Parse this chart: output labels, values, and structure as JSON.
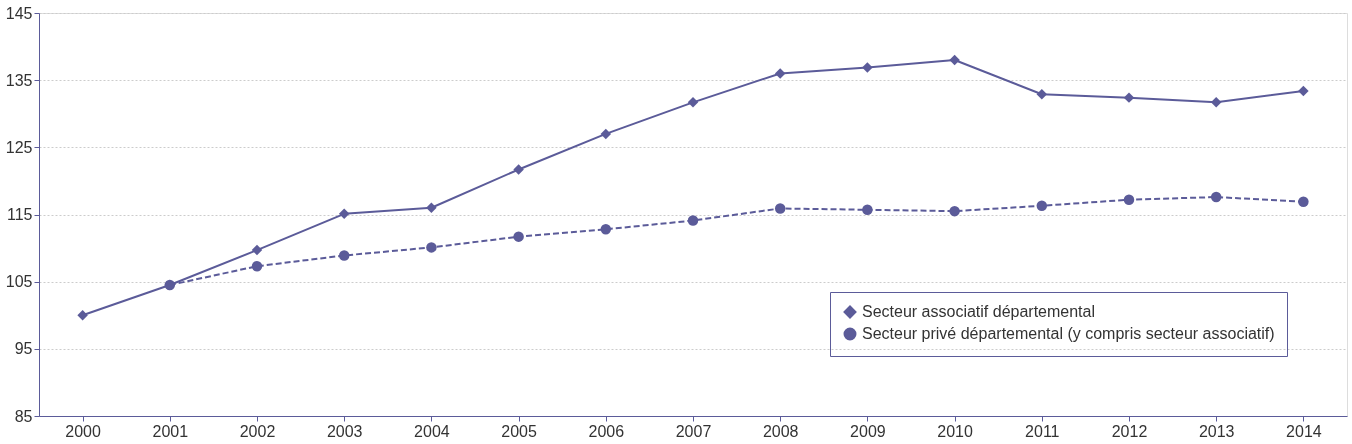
{
  "chart_data": {
    "type": "line",
    "categories": [
      "2000",
      "2001",
      "2002",
      "2003",
      "2004",
      "2005",
      "2006",
      "2007",
      "2008",
      "2009",
      "2010",
      "2011",
      "2012",
      "2013",
      "2014"
    ],
    "series": [
      {
        "name": "Secteur associatif départemental",
        "color": "#5b5b99",
        "marker": "diamond",
        "line_style": "solid",
        "values": [
          100,
          104.5,
          109.7,
          115.1,
          116,
          121.7,
          127,
          131.7,
          136,
          136.9,
          138,
          132.9,
          132.4,
          131.7,
          133.4
        ]
      },
      {
        "name": "Secteur privé départemental (y compris secteur associatif)",
        "color": "#5b5b99",
        "marker": "circle",
        "line_style": "dashed",
        "values": [
          null,
          104.5,
          107.3,
          108.9,
          110.1,
          111.7,
          112.8,
          114.1,
          115.9,
          115.7,
          115.5,
          116.3,
          117.2,
          117.6,
          116.9
        ]
      }
    ],
    "ylim": [
      85,
      145
    ],
    "yticks": [
      85,
      95,
      105,
      115,
      125,
      135,
      145
    ],
    "grid": "y",
    "legend": "bottom right"
  }
}
